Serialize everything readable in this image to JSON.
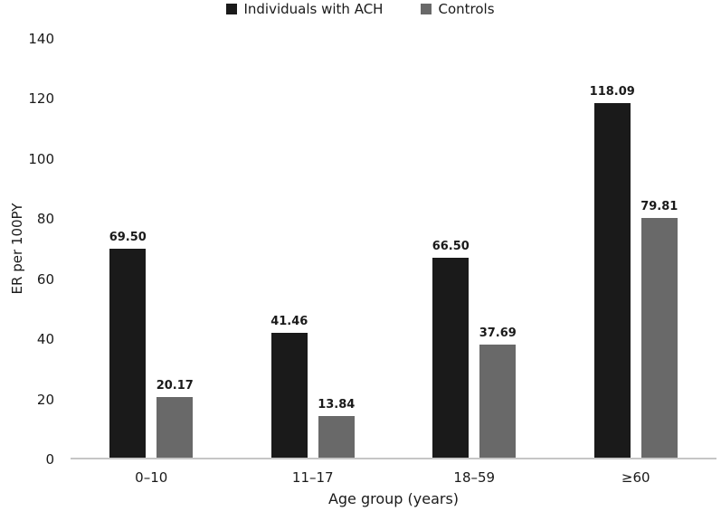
{
  "chart_data": {
    "type": "bar",
    "title": "",
    "xlabel": "Age group (years)",
    "ylabel": "ER per 100PY",
    "categories": [
      "0–10",
      "11–17",
      "18–59",
      "≥60"
    ],
    "series": [
      {
        "name": "Individuals with ACH",
        "color": "#1a1a1a",
        "values": [
          69.5,
          41.46,
          66.5,
          118.09
        ],
        "value_labels": [
          "69.50",
          "41.46",
          "66.50",
          "118.09"
        ]
      },
      {
        "name": "Controls",
        "color": "#696969",
        "values": [
          20.17,
          13.84,
          37.69,
          79.81
        ],
        "value_labels": [
          "20.17",
          "13.84",
          "37.69",
          "79.81"
        ]
      }
    ],
    "ylim": [
      0,
      140
    ],
    "yticks": [
      0,
      20,
      40,
      60,
      80,
      100,
      120,
      140
    ],
    "grid": false,
    "legend_position": "top",
    "axis_line_color": "#c6c6c6",
    "background_color": "#ffffff"
  }
}
